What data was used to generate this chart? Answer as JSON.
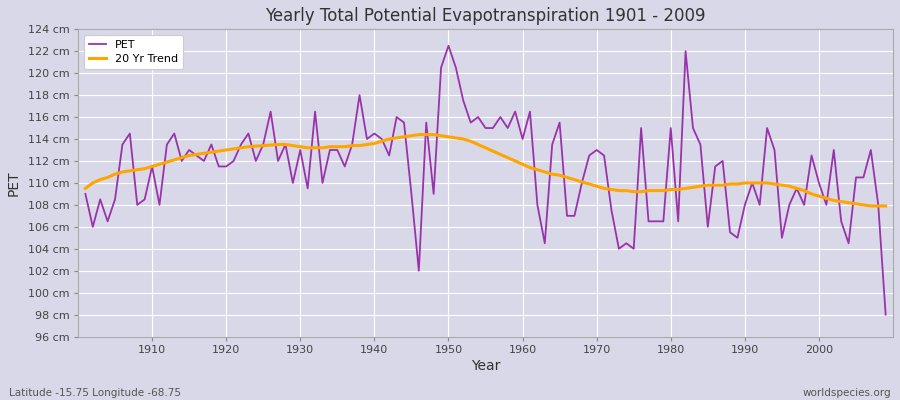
{
  "title": "Yearly Total Potential Evapotranspiration 1901 - 2009",
  "xlabel": "Year",
  "ylabel": "PET",
  "bottom_left_label": "Latitude -15.75 Longitude -68.75",
  "bottom_right_label": "worldspecies.org",
  "pet_color": "#9933AA",
  "trend_color": "#FFA500",
  "background_color": "#d8d8e8",
  "plot_bg_color": "#d8d8e8",
  "ylim": [
    96,
    124
  ],
  "ytick_step": 2,
  "years": [
    1901,
    1902,
    1903,
    1904,
    1905,
    1906,
    1907,
    1908,
    1909,
    1910,
    1911,
    1912,
    1913,
    1914,
    1915,
    1916,
    1917,
    1918,
    1919,
    1920,
    1921,
    1922,
    1923,
    1924,
    1925,
    1926,
    1927,
    1928,
    1929,
    1930,
    1931,
    1932,
    1933,
    1934,
    1935,
    1936,
    1937,
    1938,
    1939,
    1940,
    1941,
    1942,
    1943,
    1944,
    1945,
    1946,
    1947,
    1948,
    1949,
    1950,
    1951,
    1952,
    1953,
    1954,
    1955,
    1956,
    1957,
    1958,
    1959,
    1960,
    1961,
    1962,
    1963,
    1964,
    1965,
    1966,
    1967,
    1968,
    1969,
    1970,
    1971,
    1972,
    1973,
    1974,
    1975,
    1976,
    1977,
    1978,
    1979,
    1980,
    1981,
    1982,
    1983,
    1984,
    1985,
    1986,
    1987,
    1988,
    1989,
    1990,
    1991,
    1992,
    1993,
    1994,
    1995,
    1996,
    1997,
    1998,
    1999,
    2000,
    2001,
    2002,
    2003,
    2004,
    2005,
    2006,
    2007,
    2008,
    2009
  ],
  "pet_values": [
    109.0,
    106.0,
    108.5,
    106.5,
    108.5,
    113.5,
    114.5,
    108.0,
    108.5,
    111.5,
    108.0,
    113.5,
    114.5,
    112.0,
    113.0,
    112.5,
    112.0,
    113.5,
    111.5,
    111.5,
    112.0,
    113.5,
    114.5,
    112.0,
    113.5,
    116.5,
    112.0,
    113.5,
    110.0,
    113.0,
    109.5,
    116.5,
    110.0,
    113.0,
    113.0,
    111.5,
    113.5,
    118.0,
    114.0,
    114.5,
    114.0,
    112.5,
    116.0,
    115.5,
    109.0,
    102.0,
    115.5,
    109.0,
    120.5,
    122.5,
    120.5,
    117.5,
    115.5,
    116.0,
    115.0,
    115.0,
    116.0,
    115.0,
    116.5,
    114.0,
    116.5,
    108.0,
    104.5,
    113.5,
    115.5,
    107.0,
    107.0,
    110.0,
    112.5,
    113.0,
    112.5,
    107.5,
    104.0,
    104.5,
    104.0,
    115.0,
    106.5,
    106.5,
    106.5,
    115.0,
    106.5,
    122.0,
    115.0,
    113.5,
    106.0,
    111.5,
    112.0,
    105.5,
    105.0,
    108.0,
    110.0,
    108.0,
    115.0,
    113.0,
    105.0,
    108.0,
    109.5,
    108.0,
    112.5,
    110.0,
    108.0,
    113.0,
    106.5,
    104.5,
    110.5,
    110.5,
    113.0,
    108.0,
    98.0
  ],
  "trend_values": [
    109.5,
    110.0,
    110.3,
    110.5,
    110.8,
    111.0,
    111.1,
    111.2,
    111.3,
    111.5,
    111.7,
    111.9,
    112.1,
    112.3,
    112.5,
    112.6,
    112.7,
    112.8,
    112.9,
    113.0,
    113.1,
    113.2,
    113.3,
    113.35,
    113.4,
    113.45,
    113.5,
    113.5,
    113.4,
    113.3,
    113.2,
    113.2,
    113.2,
    113.3,
    113.3,
    113.3,
    113.4,
    113.4,
    113.5,
    113.6,
    113.8,
    114.0,
    114.1,
    114.2,
    114.3,
    114.4,
    114.4,
    114.4,
    114.3,
    114.2,
    114.1,
    114.0,
    113.8,
    113.5,
    113.2,
    112.9,
    112.6,
    112.3,
    112.0,
    111.7,
    111.4,
    111.2,
    111.0,
    110.8,
    110.7,
    110.5,
    110.3,
    110.1,
    109.9,
    109.7,
    109.5,
    109.4,
    109.3,
    109.3,
    109.2,
    109.2,
    109.3,
    109.3,
    109.3,
    109.4,
    109.4,
    109.5,
    109.6,
    109.7,
    109.8,
    109.8,
    109.8,
    109.9,
    109.9,
    110.0,
    110.0,
    110.0,
    110.0,
    109.9,
    109.8,
    109.7,
    109.5,
    109.3,
    109.0,
    108.8,
    108.6,
    108.4,
    108.3,
    108.2,
    108.1,
    108.0,
    107.9,
    107.9,
    107.9
  ]
}
